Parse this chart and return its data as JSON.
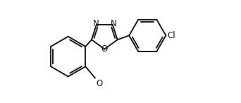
{
  "bg_color": "#ffffff",
  "line_color": "#1a1a1a",
  "line_width": 1.4,
  "font_size": 8.5,
  "xlim": [
    -0.5,
    8.5
  ],
  "ylim": [
    -0.3,
    4.8
  ],
  "figsize": [
    3.42,
    1.46
  ],
  "dpi": 100
}
